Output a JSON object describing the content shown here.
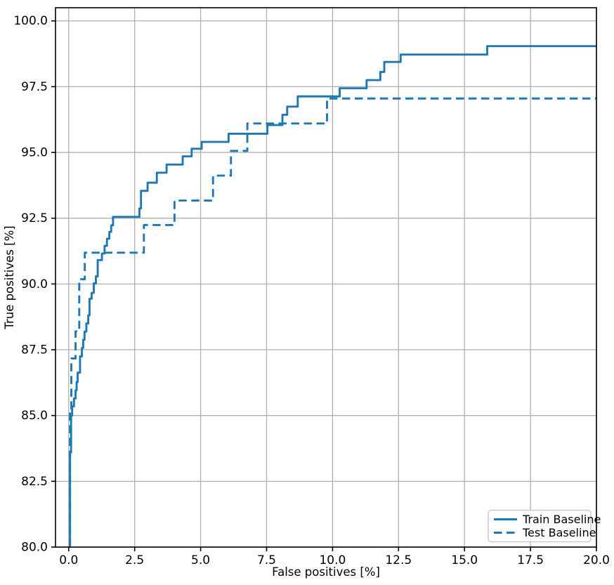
{
  "chart_data": {
    "type": "line",
    "subtype": "step_roc_curves",
    "title": "",
    "xlabel": "False positives [%]",
    "ylabel": "True positives [%]",
    "xlim": [
      -0.5,
      20.0
    ],
    "ylim": [
      80.0,
      100.5
    ],
    "grid": true,
    "grid_color": "#b0b0b0",
    "background_color": "#ffffff",
    "spine_color": "#000000",
    "accent_color": "#1f77b4",
    "x_ticks": {
      "values": [
        0.0,
        2.5,
        5.0,
        7.5,
        10.0,
        12.5,
        15.0,
        17.5,
        20.0
      ],
      "labels": [
        "0.0",
        "2.5",
        "5.0",
        "7.5",
        "10.0",
        "12.5",
        "15.0",
        "17.5",
        "20.0"
      ]
    },
    "y_ticks": {
      "values": [
        80.0,
        82.5,
        85.0,
        87.5,
        90.0,
        92.5,
        95.0,
        97.5,
        100.0
      ],
      "labels": [
        "80.0",
        "82.5",
        "85.0",
        "87.5",
        "90.0",
        "92.5",
        "95.0",
        "97.5",
        "100.0"
      ]
    },
    "legend": {
      "position": "lower right",
      "entries": [
        {
          "label": "Train Baseline",
          "style": "solid",
          "color": "#1f77b4"
        },
        {
          "label": "Test Baseline",
          "style": "dashed",
          "color": "#1f77b4"
        }
      ]
    },
    "series": [
      {
        "name": "Train Baseline",
        "style": "solid",
        "color": "#1f77b4",
        "step_mode": "post",
        "points": [
          [
            0.05,
            80.0
          ],
          [
            0.05,
            83.6
          ],
          [
            0.09,
            83.6
          ],
          [
            0.09,
            85.0
          ],
          [
            0.13,
            85.0
          ],
          [
            0.13,
            85.35
          ],
          [
            0.2,
            85.35
          ],
          [
            0.2,
            85.65
          ],
          [
            0.26,
            85.65
          ],
          [
            0.26,
            85.96
          ],
          [
            0.3,
            85.96
          ],
          [
            0.3,
            86.27
          ],
          [
            0.34,
            86.27
          ],
          [
            0.34,
            86.63
          ],
          [
            0.43,
            86.63
          ],
          [
            0.43,
            87.25
          ],
          [
            0.5,
            87.25
          ],
          [
            0.5,
            87.57
          ],
          [
            0.55,
            87.57
          ],
          [
            0.55,
            87.88
          ],
          [
            0.6,
            87.88
          ],
          [
            0.6,
            88.19
          ],
          [
            0.67,
            88.19
          ],
          [
            0.67,
            88.5
          ],
          [
            0.74,
            88.5
          ],
          [
            0.74,
            88.81
          ],
          [
            0.79,
            88.81
          ],
          [
            0.79,
            89.44
          ],
          [
            0.87,
            89.44
          ],
          [
            0.87,
            89.66
          ],
          [
            0.95,
            89.66
          ],
          [
            0.95,
            90.02
          ],
          [
            1.03,
            90.02
          ],
          [
            1.03,
            90.29
          ],
          [
            1.1,
            90.29
          ],
          [
            1.1,
            90.91
          ],
          [
            1.26,
            90.91
          ],
          [
            1.26,
            91.16
          ],
          [
            1.36,
            91.16
          ],
          [
            1.36,
            91.45
          ],
          [
            1.45,
            91.45
          ],
          [
            1.45,
            91.72
          ],
          [
            1.54,
            91.72
          ],
          [
            1.54,
            91.98
          ],
          [
            1.61,
            91.98
          ],
          [
            1.61,
            92.23
          ],
          [
            1.68,
            92.23
          ],
          [
            1.68,
            92.55
          ],
          [
            2.68,
            92.55
          ],
          [
            2.68,
            92.87
          ],
          [
            2.74,
            92.87
          ],
          [
            2.74,
            93.54
          ],
          [
            2.99,
            93.54
          ],
          [
            2.99,
            93.85
          ],
          [
            3.34,
            93.85
          ],
          [
            3.34,
            94.23
          ],
          [
            3.71,
            94.23
          ],
          [
            3.71,
            94.54
          ],
          [
            4.32,
            94.54
          ],
          [
            4.32,
            94.85
          ],
          [
            4.66,
            94.85
          ],
          [
            4.66,
            95.14
          ],
          [
            5.04,
            95.14
          ],
          [
            5.04,
            95.4
          ],
          [
            6.06,
            95.4
          ],
          [
            6.06,
            95.71
          ],
          [
            7.53,
            95.71
          ],
          [
            7.53,
            96.04
          ],
          [
            8.1,
            96.04
          ],
          [
            8.1,
            96.43
          ],
          [
            8.28,
            96.43
          ],
          [
            8.28,
            96.74
          ],
          [
            8.68,
            96.74
          ],
          [
            8.68,
            97.13
          ],
          [
            10.27,
            97.13
          ],
          [
            10.27,
            97.44
          ],
          [
            11.29,
            97.44
          ],
          [
            11.29,
            97.75
          ],
          [
            11.81,
            97.75
          ],
          [
            11.81,
            98.06
          ],
          [
            11.96,
            98.06
          ],
          [
            11.96,
            98.44
          ],
          [
            12.58,
            98.44
          ],
          [
            12.58,
            98.72
          ],
          [
            15.86,
            98.72
          ],
          [
            15.86,
            99.04
          ],
          [
            20.0,
            99.04
          ]
        ]
      },
      {
        "name": "Test Baseline",
        "style": "dashed",
        "color": "#1f77b4",
        "step_mode": "post",
        "points": [
          [
            0.05,
            80.0
          ],
          [
            0.05,
            85.2
          ],
          [
            0.1,
            85.2
          ],
          [
            0.1,
            87.17
          ],
          [
            0.26,
            87.17
          ],
          [
            0.26,
            88.2
          ],
          [
            0.4,
            88.2
          ],
          [
            0.4,
            90.18
          ],
          [
            0.61,
            90.18
          ],
          [
            0.61,
            91.19
          ],
          [
            2.85,
            91.19
          ],
          [
            2.85,
            92.24
          ],
          [
            4.01,
            92.24
          ],
          [
            4.01,
            93.17
          ],
          [
            5.47,
            93.17
          ],
          [
            5.47,
            94.12
          ],
          [
            6.15,
            94.12
          ],
          [
            6.15,
            95.06
          ],
          [
            6.77,
            95.06
          ],
          [
            6.77,
            96.1
          ],
          [
            9.79,
            96.1
          ],
          [
            9.79,
            97.05
          ],
          [
            20.0,
            97.05
          ]
        ]
      }
    ]
  }
}
